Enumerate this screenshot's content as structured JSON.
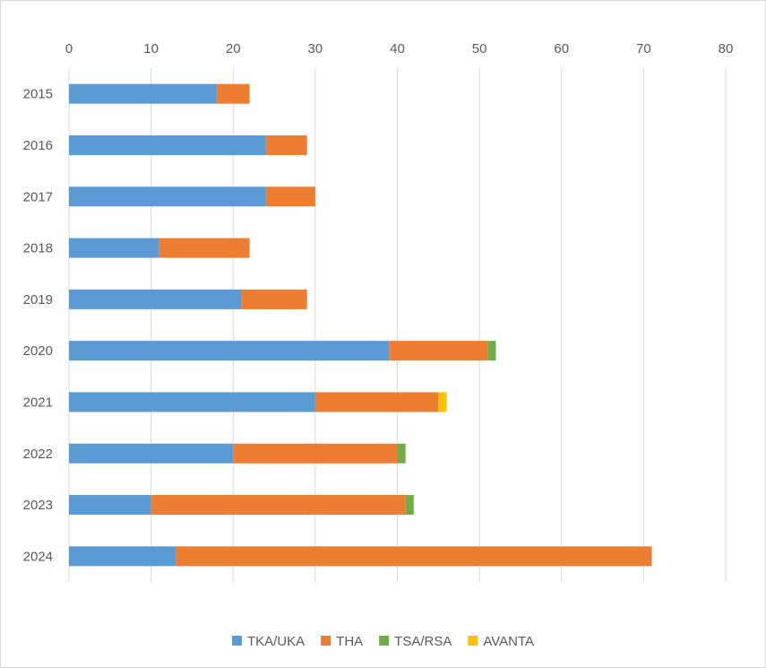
{
  "chart_data": {
    "type": "bar",
    "orientation": "horizontal",
    "stacked": true,
    "title": "",
    "xlabel": "",
    "ylabel": "",
    "xlim": [
      0,
      80
    ],
    "x_ticks": [
      0,
      10,
      20,
      30,
      40,
      50,
      60,
      70,
      80
    ],
    "x_axis_position": "top",
    "grid": true,
    "legend_position": "bottom",
    "categories": [
      "2015",
      "2016",
      "2017",
      "2018",
      "2019",
      "2020",
      "2021",
      "2022",
      "2023",
      "2024"
    ],
    "series": [
      {
        "name": "TKA/UKA",
        "color": "#5b9bd5",
        "values": [
          18,
          24,
          24,
          11,
          21,
          39,
          30,
          20,
          10,
          13
        ]
      },
      {
        "name": "THA",
        "color": "#ed7d31",
        "values": [
          4,
          5,
          6,
          11,
          8,
          12,
          15,
          20,
          31,
          58
        ]
      },
      {
        "name": "TSA/RSA",
        "color": "#70ad47",
        "values": [
          0,
          0,
          0,
          0,
          0,
          1,
          0,
          1,
          1,
          0
        ]
      },
      {
        "name": "AVANTA",
        "color": "#ffc000",
        "values": [
          0,
          0,
          0,
          0,
          0,
          0,
          1,
          0,
          0,
          0
        ]
      }
    ]
  }
}
